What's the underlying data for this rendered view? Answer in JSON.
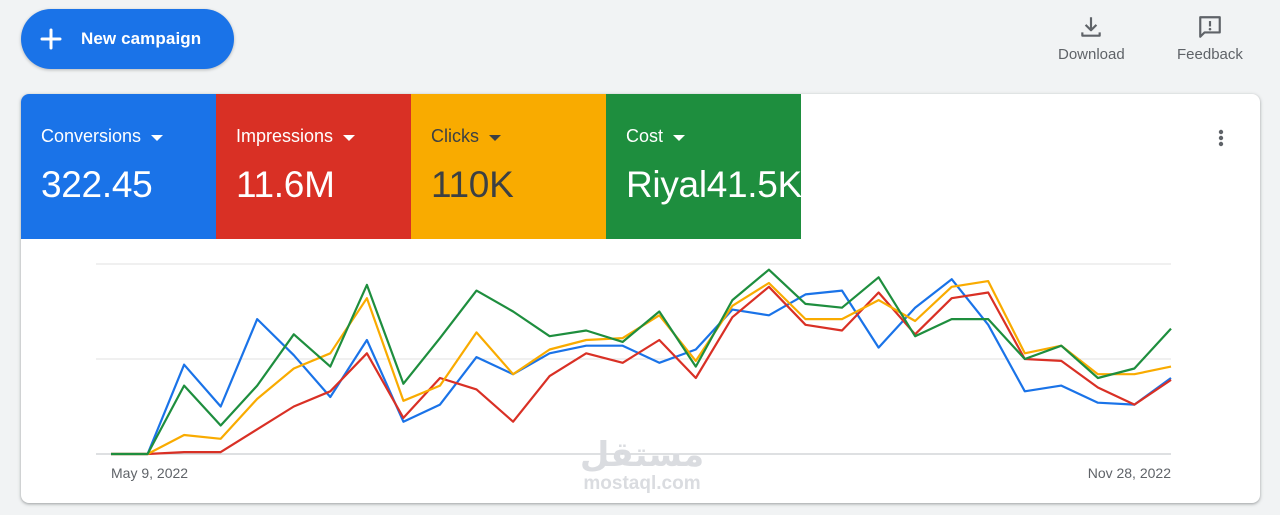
{
  "toolbar": {
    "new_campaign_label": "New campaign",
    "download_label": "Download",
    "feedback_label": "Feedback"
  },
  "metrics": [
    {
      "name": "Conversions",
      "value": "322.45",
      "color": "#1a73e8"
    },
    {
      "name": "Impressions",
      "value": "11.6M",
      "color": "#d93025"
    },
    {
      "name": "Clicks",
      "value": "110K",
      "color": "#f9ab00"
    },
    {
      "name": "Cost",
      "value": "Riyal41.5K",
      "color": "#1e8e3e"
    }
  ],
  "icons": {
    "new_campaign": "plus-icon",
    "download": "download-icon",
    "feedback": "feedback-icon",
    "more": "more-vert-icon"
  },
  "watermark": {
    "arabic": "مستقل",
    "latin": "mostaql.com"
  },
  "chart_data": {
    "type": "line",
    "x_start_label": "May 9, 2022",
    "x_end_label": "Nov 28, 2022",
    "grid": true,
    "ylim": [
      0,
      100
    ],
    "series": [
      {
        "name": "Conversions",
        "color": "#1a73e8",
        "values": [
          0,
          0,
          47,
          25,
          71,
          52,
          30,
          60,
          17,
          26,
          51,
          42,
          53,
          57,
          57,
          48,
          55,
          76,
          73,
          84,
          86,
          56,
          77,
          92,
          68,
          33,
          36,
          27,
          26,
          40
        ]
      },
      {
        "name": "Impressions",
        "color": "#d93025",
        "values": [
          0,
          0,
          1,
          1,
          13,
          25,
          33,
          53,
          19,
          40,
          34,
          17,
          41,
          53,
          48,
          60,
          40,
          72,
          88,
          68,
          65,
          85,
          63,
          82,
          85,
          50,
          49,
          35,
          26,
          39
        ]
      },
      {
        "name": "Clicks",
        "color": "#f9ab00",
        "values": [
          0,
          0,
          10,
          8,
          29,
          45,
          53,
          82,
          28,
          36,
          64,
          42,
          55,
          60,
          61,
          73,
          49,
          78,
          90,
          71,
          71,
          81,
          70,
          88,
          91,
          53,
          57,
          42,
          42,
          46
        ]
      },
      {
        "name": "Cost",
        "color": "#1e8e3e",
        "values": [
          0,
          0,
          36,
          15,
          36,
          63,
          46,
          89,
          37,
          61,
          86,
          75,
          62,
          65,
          59,
          75,
          46,
          81,
          97,
          79,
          77,
          93,
          62,
          71,
          71,
          50,
          57,
          40,
          45,
          66
        ]
      }
    ]
  }
}
